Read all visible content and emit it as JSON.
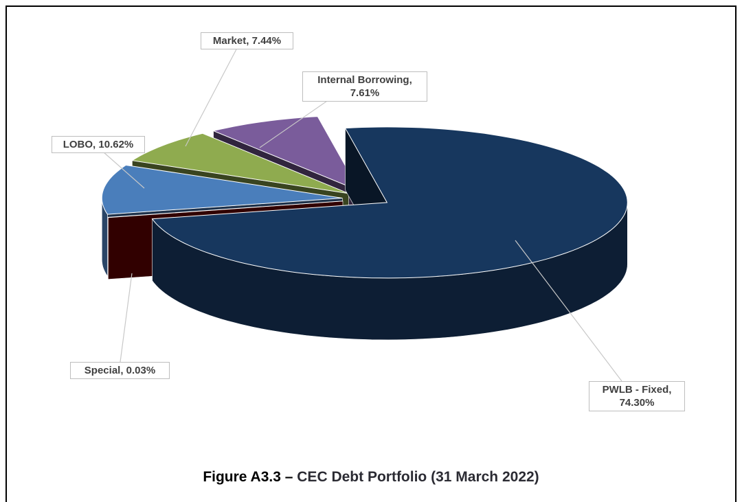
{
  "chart_data": {
    "type": "pie",
    "three_d": true,
    "figure_label": "Figure A3.3 –",
    "title": "CEC Debt Portfolio (31 March 2022)",
    "values": [
      74.3,
      0.03,
      10.62,
      7.44,
      7.61
    ],
    "value_labels": [
      "PWLB - Fixed, 74.30%",
      "Special, 0.03%",
      "LOBO, 10.62%",
      "Market, 7.44%",
      "Internal Borrowing, 7.61%"
    ],
    "colors": [
      "#17375e",
      "#7a0000",
      "#4a7ebb",
      "#8fab4f",
      "#7a5c9b"
    ]
  }
}
